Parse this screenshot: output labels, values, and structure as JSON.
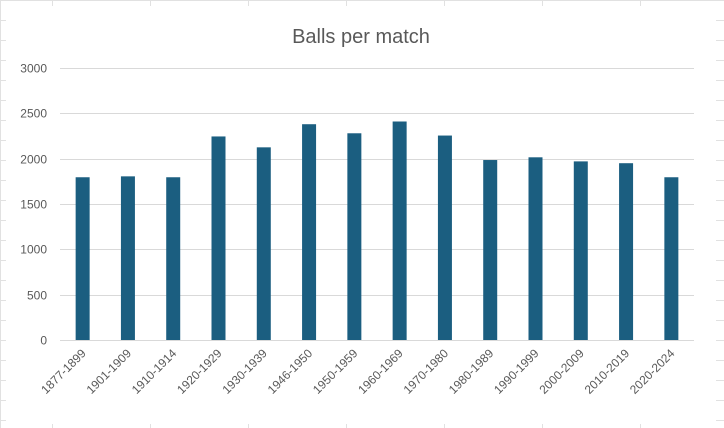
{
  "chart_data": {
    "type": "bar",
    "title": "Balls per match",
    "xlabel": "",
    "ylabel": "",
    "categories": [
      "1877-1899",
      "1901-1909",
      "1910-1914",
      "1920-1929",
      "1930-1939",
      "1946-1950",
      "1950-1959",
      "1960-1969",
      "1970-1980",
      "1980-1989",
      "1990-1999",
      "2000-2009",
      "2010-2019",
      "2020-2024"
    ],
    "values": [
      1795,
      1805,
      1795,
      2245,
      2125,
      2380,
      2280,
      2410,
      2255,
      1985,
      2015,
      1970,
      1950,
      1795
    ],
    "ylim": [
      0,
      3000
    ],
    "yticks": [
      0,
      500,
      1000,
      1500,
      2000,
      2500,
      3000
    ],
    "grid": true,
    "legend": "none",
    "bar_color": "#1b5e80",
    "grid_color": "#d9d9d9",
    "text_color": "#595959"
  }
}
